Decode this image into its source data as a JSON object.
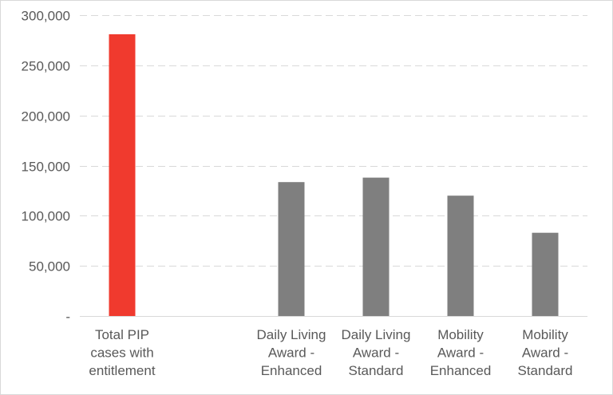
{
  "chart_data": {
    "type": "bar",
    "title": "",
    "xlabel": "",
    "ylabel": "",
    "categories": [
      [
        "Total PIP",
        "cases with",
        "entitlement"
      ],
      [],
      [
        "Daily Living",
        "Award -",
        "Enhanced"
      ],
      [
        "Daily Living",
        "Award -",
        "Standard"
      ],
      [
        "Mobility",
        "Award -",
        "Enhanced"
      ],
      [
        "Mobility",
        "Award -",
        "Standard"
      ]
    ],
    "values": [
      281000,
      null,
      133500,
      138000,
      120000,
      83000
    ],
    "colors": [
      "#f03a2e",
      null,
      "#7f7f7f",
      "#7f7f7f",
      "#7f7f7f",
      "#7f7f7f"
    ],
    "ylim": [
      0,
      300000
    ],
    "yticks": [
      {
        "value": 0,
        "label": "-"
      },
      {
        "value": 50000,
        "label": "50,000"
      },
      {
        "value": 100000,
        "label": "100,000"
      },
      {
        "value": 150000,
        "label": "150,000"
      },
      {
        "value": 200000,
        "label": "200,000"
      },
      {
        "value": 250000,
        "label": "250,000"
      },
      {
        "value": 300000,
        "label": "300,000"
      }
    ],
    "grid": true,
    "legend": "none"
  }
}
